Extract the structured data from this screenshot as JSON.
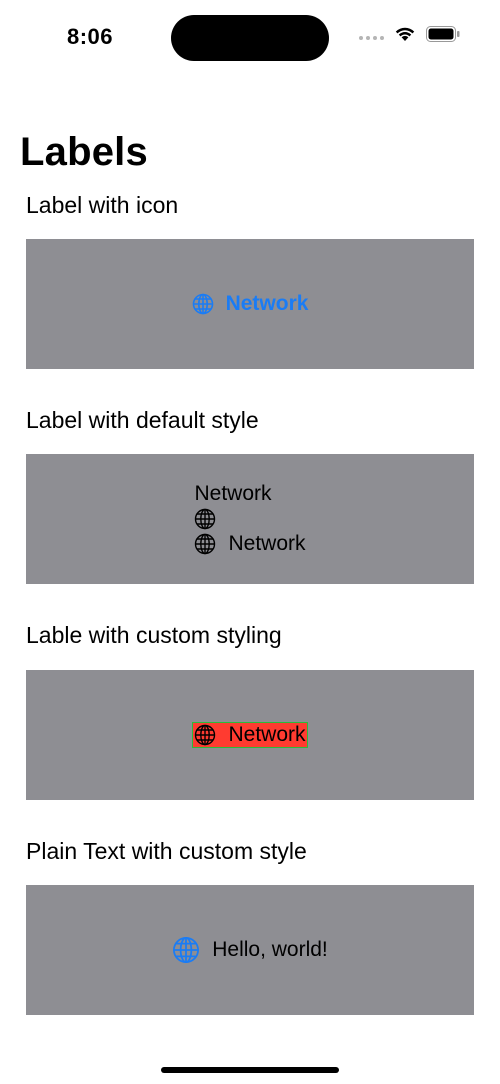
{
  "status_bar": {
    "time": "8:06",
    "icons": [
      "cellular-signal-icon",
      "wifi-icon",
      "battery-icon"
    ]
  },
  "page": {
    "title": "Labels"
  },
  "sections": [
    {
      "heading": "Label with icon",
      "label_text": "Network",
      "icon": "globe-icon",
      "color": "#1a7cf5"
    },
    {
      "heading": "Label with default style",
      "title_only": "Network",
      "icon_only": "globe-icon",
      "title_and_icon": "Network"
    },
    {
      "heading": "Lable with custom styling",
      "label_text": "Network",
      "icon": "globe-icon",
      "background_color": "#ff3b30",
      "border_color": "#2bbb3c"
    },
    {
      "heading": "Plain Text with custom style",
      "text": "Hello, world!",
      "icon": "globe-icon",
      "icon_color": "#1a7cf5"
    }
  ],
  "colors": {
    "panel_background": "#8e8e93",
    "accent": "#1a7cf5"
  }
}
